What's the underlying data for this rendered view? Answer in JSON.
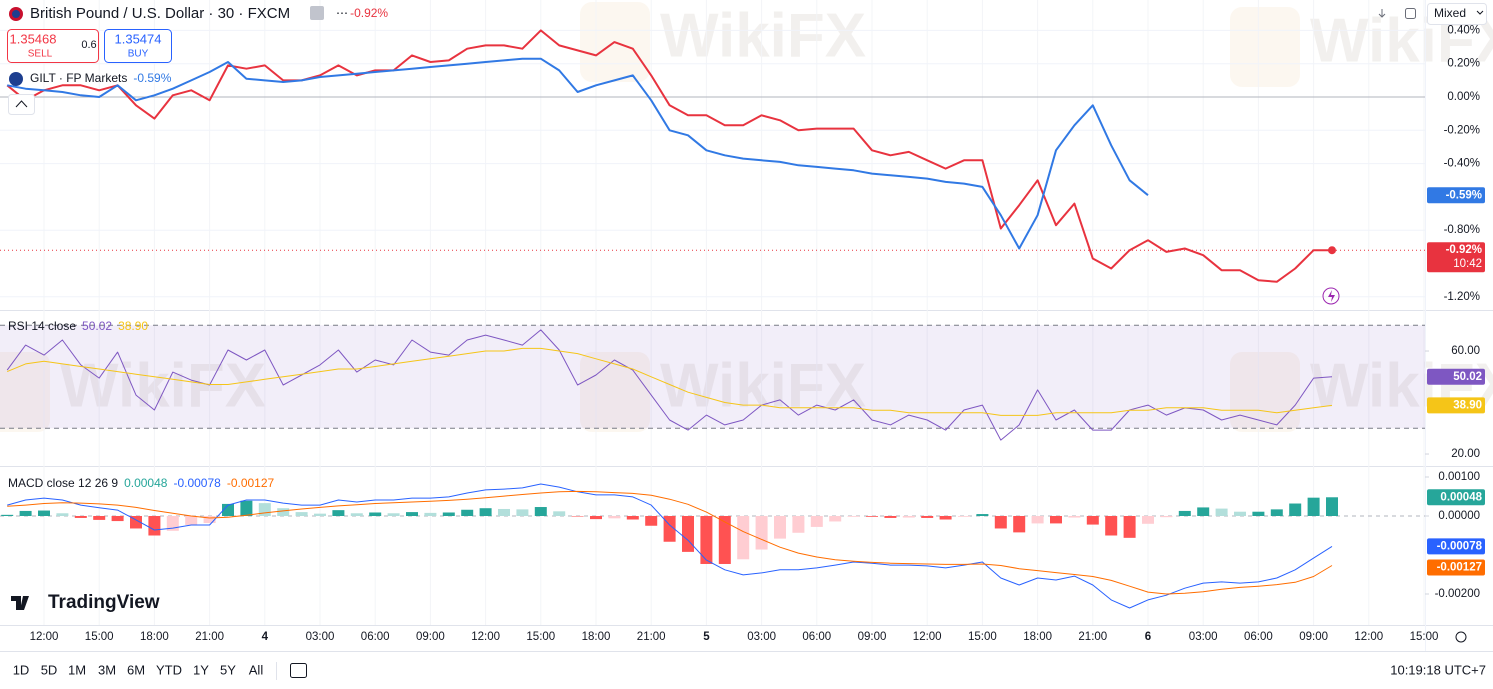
{
  "header": {
    "symbol": "British Pound / U.S. Dollar · 30 · FXCM",
    "sell": {
      "price": "1.35468",
      "label": "SELL"
    },
    "spread": "0.6",
    "buy": {
      "price": "1.35474",
      "label": "BUY"
    },
    "price_scale_mode": "Mixed"
  },
  "watermark": "WikiFX",
  "logo": "TradingView",
  "timeframes": [
    "1D",
    "5D",
    "1M",
    "3M",
    "6M",
    "YTD",
    "1Y",
    "5Y",
    "All"
  ],
  "clock": "10:19:18 UTC+7",
  "chart_data": [
    {
      "type": "line",
      "categories": [
        null,
        null,
        "12:00",
        null,
        null,
        "15:00",
        null,
        null,
        "18:00",
        null,
        null,
        "21:00",
        null,
        null,
        "4",
        null,
        null,
        "03:00",
        null,
        null,
        "06:00",
        null,
        null,
        "09:00",
        null,
        null,
        "12:00",
        null,
        null,
        "15:00",
        null,
        null,
        "18:00",
        null,
        null,
        "21:00",
        null,
        null,
        "5",
        null,
        null,
        "03:00",
        null,
        null,
        "06:00",
        null,
        null,
        "09:00",
        null,
        null,
        "12:00",
        null,
        null,
        "15:00",
        null,
        null,
        "18:00",
        null,
        null,
        "21:00",
        null,
        null,
        "6",
        null,
        null,
        "03:00",
        null,
        null,
        "06:00",
        null,
        null,
        "09:00",
        null,
        null,
        "12:00",
        null,
        null,
        "15:00"
      ],
      "series": [
        {
          "color": "#e8333f",
          "last_label": "-0.92%",
          "countdown": "10:42",
          "values": [
            0.07,
            -0.02,
            0.04,
            0.07,
            0.07,
            0.04,
            0.07,
            -0.05,
            -0.13,
            0.01,
            0.04,
            -0.02,
            0.19,
            0.17,
            0.19,
            0.1,
            0.1,
            0.13,
            0.19,
            0.13,
            0.16,
            0.16,
            0.25,
            0.21,
            0.22,
            0.29,
            0.31,
            0.31,
            0.29,
            0.4,
            0.31,
            0.28,
            0.25,
            0.33,
            0.29,
            0.13,
            -0.05,
            -0.11,
            -0.11,
            -0.17,
            -0.17,
            -0.11,
            -0.14,
            -0.2,
            -0.19,
            -0.19,
            -0.19,
            -0.32,
            -0.35,
            -0.33,
            -0.38,
            -0.43,
            -0.38,
            -0.38,
            -0.79,
            -0.65,
            -0.5,
            -0.77,
            -0.64,
            -0.97,
            -1.03,
            -0.92,
            -0.86,
            -0.93,
            -0.91,
            -0.95,
            -1.04,
            -1.04,
            -1.1,
            -1.11,
            -1.03,
            -0.92,
            -0.92,
            null,
            null,
            null,
            null,
            null
          ]
        },
        {
          "name": "GILT · FP Markets",
          "color": "#3179e4",
          "last_label": "-0.59%",
          "values": [
            0.07,
            0.05,
            0.04,
            0.03,
            0.01,
            0.0,
            0.07,
            -0.02,
            0.01,
            0.05,
            0.1,
            0.15,
            0.21,
            0.11,
            0.1,
            0.09,
            0.1,
            0.12,
            0.13,
            0.14,
            0.15,
            0.16,
            0.17,
            0.18,
            0.19,
            0.2,
            0.21,
            0.22,
            0.23,
            0.23,
            0.16,
            0.03,
            0.07,
            0.1,
            0.13,
            -0.02,
            -0.2,
            -0.23,
            -0.32,
            -0.35,
            -0.37,
            -0.38,
            -0.39,
            -0.41,
            -0.42,
            -0.43,
            -0.44,
            -0.46,
            -0.47,
            -0.48,
            -0.49,
            -0.51,
            -0.52,
            -0.54,
            -0.71,
            -0.91,
            -0.71,
            -0.32,
            -0.17,
            -0.05,
            -0.29,
            -0.5,
            -0.59,
            null,
            null,
            null,
            null,
            null,
            null,
            null,
            null,
            null,
            null,
            null,
            null,
            null,
            null,
            null
          ]
        }
      ],
      "ylim": [
        -1.26,
        0.5
      ],
      "yticks": [
        {
          "value": 0.4,
          "label": "0.40%"
        },
        {
          "value": 0.2,
          "label": "0.20%"
        },
        {
          "value": 0,
          "label": "0.00%"
        },
        {
          "value": -0.2,
          "label": "-0.20%"
        },
        {
          "value": -0.4,
          "label": "-0.40%"
        },
        {
          "value": -0.8,
          "label": "-0.80%"
        },
        {
          "value": -1.2,
          "label": "-1.20%"
        }
      ],
      "grid": true
    },
    {
      "type": "line",
      "title": "RSI 14 close",
      "series": [
        {
          "color": "#7e57c2",
          "last_label": "50.02",
          "values": [
            52.6,
            62.3,
            58.4,
            64.3,
            54.6,
            49.5,
            59.6,
            42.9,
            37.1,
            51.8,
            48.7,
            46.8,
            60.4,
            56.5,
            60.4,
            46.8,
            50.7,
            54.6,
            60.4,
            51.8,
            56.5,
            54.6,
            64.3,
            59.6,
            58.4,
            64.3,
            66.2,
            64.3,
            62.3,
            68.2,
            60.4,
            46.8,
            50.7,
            56.5,
            52.6,
            42.9,
            33.2,
            29.3,
            35.1,
            31.3,
            33.2,
            39.0,
            41.0,
            35.1,
            39.0,
            37.1,
            41.0,
            33.2,
            31.3,
            35.1,
            33.2,
            29.3,
            37.1,
            39.0,
            25.4,
            31.3,
            44.9,
            33.2,
            37.1,
            29.3,
            29.3,
            37.1,
            39.0,
            35.1,
            37.9,
            37.1,
            33.2,
            35.1,
            33.2,
            31.3,
            39.0,
            49.5,
            50.02,
            null,
            null,
            null,
            null,
            null
          ]
        },
        {
          "color": "#f5c518",
          "last_label": "38.90",
          "values": [
            52,
            55,
            56,
            55,
            54,
            53,
            52,
            51,
            50,
            49,
            48,
            47,
            47,
            48,
            49,
            50,
            51,
            52,
            53,
            53,
            54,
            55,
            56,
            57,
            58,
            59,
            60,
            60,
            61,
            61,
            60,
            59,
            57,
            55,
            53,
            50,
            47,
            44,
            42,
            40,
            39,
            39,
            38,
            38,
            38,
            38,
            38,
            37,
            37,
            36,
            36,
            36,
            36,
            36,
            35,
            35,
            35,
            36,
            36,
            36,
            36,
            37,
            37,
            38,
            38,
            38,
            37,
            37,
            37,
            36,
            37,
            38,
            38.9,
            null,
            null,
            null,
            null,
            null
          ]
        }
      ],
      "bands": [
        70,
        30
      ],
      "ylim": [
        15,
        75
      ],
      "yticks": [
        {
          "value": 60,
          "label": "60.00"
        },
        {
          "value": 20,
          "label": "20.00"
        }
      ]
    },
    {
      "type": "macd",
      "title": "MACD close 12 26 9",
      "histogram": {
        "last_label": "0.00048",
        "colors": {
          "up_strong": "#26a69a",
          "up_weak": "#b2dfdb",
          "down_strong": "#ff5252",
          "down_weak": "#ffcdd2"
        },
        "values": [
          3e-05,
          0.00013,
          0.00014,
          7e-05,
          -5e-05,
          -0.0001,
          -0.00013,
          -0.00032,
          -0.0005,
          -0.00038,
          -0.00023,
          -0.00018,
          0.00031,
          0.00039,
          0.00033,
          0.0002,
          0.0001,
          6e-05,
          0.00015,
          7e-05,
          9e-05,
          7e-05,
          0.0001,
          8e-05,
          9e-05,
          0.00016,
          0.0002,
          0.00018,
          0.00017,
          0.00023,
          0.00012,
          -1e-05,
          -8e-05,
          -6e-05,
          -9e-05,
          -0.00025,
          -0.00066,
          -0.00092,
          -0.00123,
          -0.00123,
          -0.00111,
          -0.00086,
          -0.00058,
          -0.00043,
          -0.00028,
          -0.00014,
          -2e-05,
          -2e-05,
          -5e-05,
          -4e-05,
          -5e-05,
          -9e-05,
          -2e-05,
          5e-05,
          -0.00032,
          -0.00042,
          -0.00019,
          -0.00019,
          -4e-05,
          -0.00022,
          -0.0005,
          -0.00056,
          -0.0002,
          -3e-05,
          0.00013,
          0.00022,
          0.00019,
          0.00011,
          0.00011,
          0.00017,
          0.00032,
          0.00047,
          0.00048,
          null,
          null,
          null,
          null,
          null
        ]
      },
      "series": [
        {
          "color": "#2962ff",
          "last_label": "-0.00078",
          "values": [
            0.00028,
            0.00041,
            0.00046,
            0.00041,
            0.00028,
            0.00021,
            0.00015,
            -0.0001,
            -0.00036,
            -0.00031,
            -0.00023,
            -0.00023,
            0.00028,
            0.00041,
            0.00041,
            0.00033,
            0.00028,
            0.00028,
            0.00041,
            0.00036,
            0.00041,
            0.00041,
            0.00046,
            0.00046,
            0.00049,
            0.00059,
            0.00067,
            0.00069,
            0.00072,
            0.00082,
            0.00074,
            0.00062,
            0.00054,
            0.00054,
            0.00049,
            0.00028,
            -0.00023,
            -0.00062,
            -0.00113,
            -0.00138,
            -0.00151,
            -0.00146,
            -0.00138,
            -0.00138,
            -0.00133,
            -0.00126,
            -0.00118,
            -0.00121,
            -0.00126,
            -0.00126,
            -0.00128,
            -0.00133,
            -0.00126,
            -0.00118,
            -0.00159,
            -0.00177,
            -0.00159,
            -0.00164,
            -0.00154,
            -0.00177,
            -0.00215,
            -0.00236,
            -0.00215,
            -0.00203,
            -0.00185,
            -0.00172,
            -0.00169,
            -0.00172,
            -0.00169,
            -0.00159,
            -0.00138,
            -0.00108,
            -0.00078,
            null,
            null,
            null,
            null,
            null
          ]
        },
        {
          "color": "#ff6d00",
          "last_label": "-0.00127",
          "values": [
            0.00025,
            0.00028,
            0.00032,
            0.00034,
            0.00033,
            0.00031,
            0.00028,
            0.00022,
            0.00014,
            7e-05,
            0,
            -5e-05,
            -3e-05,
            2e-05,
            8e-05,
            0.00013,
            0.00018,
            0.00022,
            0.00026,
            0.00029,
            0.00032,
            0.00034,
            0.00036,
            0.00038,
            0.0004,
            0.00043,
            0.00047,
            0.00051,
            0.00055,
            0.00059,
            0.00062,
            0.00063,
            0.00062,
            0.0006,
            0.00058,
            0.00053,
            0.00043,
            0.0003,
            0.0001,
            -0.00015,
            -0.0004,
            -0.0006,
            -0.0008,
            -0.00095,
            -0.00105,
            -0.00112,
            -0.00116,
            -0.00119,
            -0.00121,
            -0.00122,
            -0.00123,
            -0.00124,
            -0.00124,
            -0.00123,
            -0.00127,
            -0.00135,
            -0.0014,
            -0.00145,
            -0.0015,
            -0.00155,
            -0.00165,
            -0.0018,
            -0.00195,
            -0.002,
            -0.00198,
            -0.00194,
            -0.00188,
            -0.00183,
            -0.0018,
            -0.00176,
            -0.0017,
            -0.00155,
            -0.00127,
            null,
            null,
            null,
            null,
            null
          ]
        }
      ],
      "ylim": [
        -0.0028,
        0.00125
      ],
      "yticks": [
        {
          "value": 0.001,
          "label": "0.00100"
        },
        {
          "value": 0,
          "label": "0.00000"
        },
        {
          "value": -0.002,
          "label": "-0.00200"
        }
      ]
    }
  ]
}
